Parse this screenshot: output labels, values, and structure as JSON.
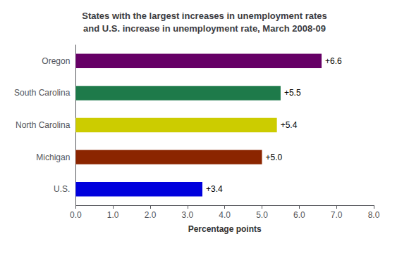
{
  "chart_data": {
    "type": "bar",
    "orientation": "horizontal",
    "title": "States with the largest increases in unemployment rates\nand U.S. increase in unemployment rate, March 2008-09",
    "categories": [
      "U.S.",
      "Michigan",
      "North Carolina",
      "South Carolina",
      "Oregon"
    ],
    "values": [
      3.4,
      5.0,
      5.4,
      5.5,
      6.6
    ],
    "value_labels": [
      "+3.4",
      "+5.0",
      "+5.4",
      "+5.5",
      "+6.6"
    ],
    "colors": [
      "#0000dd",
      "#8B2500",
      "#cccc00",
      "#1e7a4a",
      "#660066"
    ],
    "xlabel": "Percentage points",
    "xlim": [
      0,
      8.0
    ],
    "xticks": [
      {
        "value": 0.0,
        "label": "0.0"
      },
      {
        "value": 1.0,
        "label": "1.0"
      },
      {
        "value": 2.0,
        "label": "2.0"
      },
      {
        "value": 3.0,
        "label": "3.0"
      },
      {
        "value": 4.0,
        "label": "4.0"
      },
      {
        "value": 5.0,
        "label": "5.0"
      },
      {
        "value": 6.0,
        "label": "6.0"
      },
      {
        "value": 7.0,
        "label": "7.0"
      },
      {
        "value": 8.0,
        "label": "8.0"
      }
    ],
    "data_labels": true,
    "grid": false
  }
}
